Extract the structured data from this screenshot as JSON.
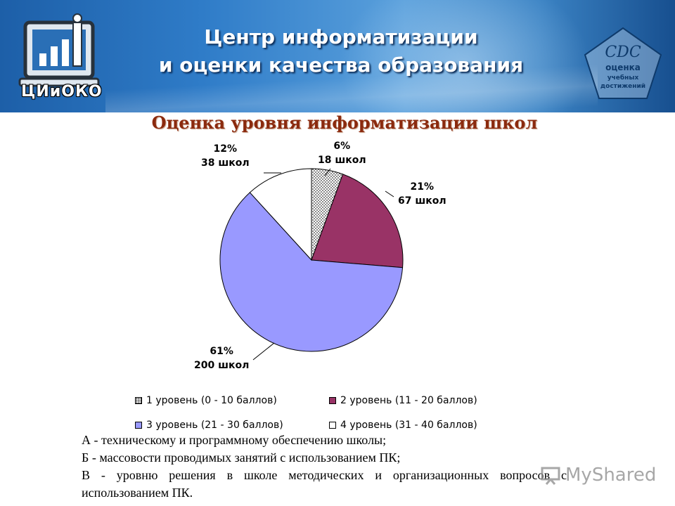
{
  "header": {
    "title_line1": "Центр информатизации",
    "title_line2": "и оценки качества образования",
    "logo_left_text": "ЦИиОКО",
    "logo_right": {
      "letters": "СDС",
      "line1": "оценка",
      "line2": "учебных",
      "line3": "достижений"
    }
  },
  "chart_data": {
    "type": "pie",
    "title": "Оценка уровня информатизации школ",
    "slices": [
      {
        "name": "1 уровень (0 - 10 баллов)",
        "percent_label": "6%",
        "count_label": "18 школ",
        "value": 18,
        "color": "#ffffff",
        "pattern": "dots"
      },
      {
        "name": "2 уровень (11 - 20 баллов)",
        "percent_label": "21%",
        "count_label": "67 школ",
        "value": 67,
        "color": "#993366",
        "pattern": "solid"
      },
      {
        "name": "3 уровень (21 - 30 баллов)",
        "percent_label": "61%",
        "count_label": "200 школ",
        "value": 200,
        "color": "#9999ff",
        "pattern": "solid"
      },
      {
        "name": "4 уровень (31 - 40 баллов)",
        "percent_label": "12%",
        "count_label": "38 школ",
        "value": 38,
        "color": "#ffffff",
        "pattern": "solid"
      }
    ],
    "legend_position": "bottom"
  },
  "notes": [
    "А - техническому и программному обеспечению школы;",
    "Б - массовости проводимых занятий с использованием ПК;",
    "В - уровню решения в школе методических и организационных вопросов с использованием ПК."
  ],
  "watermark": "MyShared"
}
